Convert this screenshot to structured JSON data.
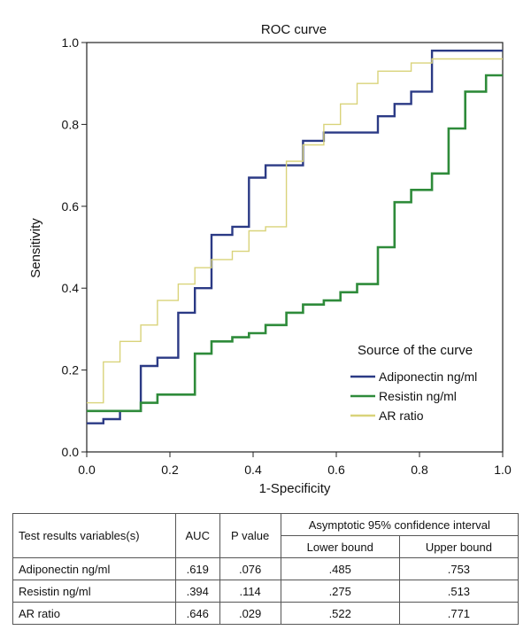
{
  "chart_data": {
    "type": "line",
    "title": "ROC curve",
    "xlabel": "1-Specificity",
    "ylabel": "Sensitivity",
    "xlim": [
      0,
      1
    ],
    "ylim": [
      0,
      1
    ],
    "xticks": [
      "0.0",
      "0.2",
      "0.4",
      "0.6",
      "0.8",
      "1.0"
    ],
    "yticks": [
      "0.0",
      "0.2",
      "0.4",
      "0.6",
      "0.8",
      "1.0"
    ],
    "legend_title": "Source of the curve",
    "legend_position": "bottom-right",
    "series": [
      {
        "name": "Adiponectin ng/ml",
        "color": "#2b3a85",
        "x": [
          0.0,
          0.04,
          0.04,
          0.08,
          0.08,
          0.13,
          0.13,
          0.17,
          0.17,
          0.22,
          0.22,
          0.26,
          0.26,
          0.3,
          0.3,
          0.35,
          0.35,
          0.39,
          0.39,
          0.43,
          0.43,
          0.52,
          0.52,
          0.57,
          0.57,
          0.7,
          0.7,
          0.74,
          0.74,
          0.78,
          0.78,
          0.83,
          0.83,
          1.0
        ],
        "y": [
          0.07,
          0.07,
          0.08,
          0.08,
          0.1,
          0.1,
          0.21,
          0.21,
          0.23,
          0.23,
          0.34,
          0.34,
          0.4,
          0.4,
          0.53,
          0.53,
          0.55,
          0.55,
          0.67,
          0.67,
          0.7,
          0.7,
          0.76,
          0.76,
          0.78,
          0.78,
          0.82,
          0.82,
          0.85,
          0.85,
          0.88,
          0.88,
          0.98,
          0.98
        ]
      },
      {
        "name": "Resistin ng/ml",
        "color": "#2e8b3a",
        "x": [
          0.0,
          0.13,
          0.13,
          0.17,
          0.17,
          0.26,
          0.26,
          0.3,
          0.3,
          0.35,
          0.35,
          0.39,
          0.39,
          0.43,
          0.43,
          0.48,
          0.48,
          0.52,
          0.52,
          0.57,
          0.57,
          0.61,
          0.61,
          0.65,
          0.65,
          0.7,
          0.7,
          0.74,
          0.74,
          0.78,
          0.78,
          0.83,
          0.83,
          0.87,
          0.87,
          0.91,
          0.91,
          0.96,
          0.96,
          1.0
        ],
        "y": [
          0.1,
          0.1,
          0.12,
          0.12,
          0.14,
          0.14,
          0.24,
          0.24,
          0.27,
          0.27,
          0.28,
          0.28,
          0.29,
          0.29,
          0.31,
          0.31,
          0.34,
          0.34,
          0.36,
          0.36,
          0.37,
          0.37,
          0.39,
          0.39,
          0.41,
          0.41,
          0.5,
          0.5,
          0.61,
          0.61,
          0.64,
          0.64,
          0.68,
          0.68,
          0.79,
          0.79,
          0.88,
          0.88,
          0.92,
          0.92
        ]
      },
      {
        "name": "AR ratio",
        "color": "#d9d37a",
        "x": [
          0.0,
          0.04,
          0.04,
          0.08,
          0.08,
          0.13,
          0.13,
          0.17,
          0.17,
          0.22,
          0.22,
          0.26,
          0.26,
          0.3,
          0.3,
          0.35,
          0.35,
          0.39,
          0.39,
          0.43,
          0.43,
          0.48,
          0.48,
          0.52,
          0.52,
          0.57,
          0.57,
          0.61,
          0.61,
          0.65,
          0.65,
          0.7,
          0.7,
          0.78,
          0.78,
          0.83,
          0.83,
          1.0
        ],
        "y": [
          0.12,
          0.12,
          0.22,
          0.22,
          0.27,
          0.27,
          0.31,
          0.31,
          0.37,
          0.37,
          0.41,
          0.41,
          0.45,
          0.45,
          0.47,
          0.47,
          0.49,
          0.49,
          0.54,
          0.54,
          0.55,
          0.55,
          0.71,
          0.71,
          0.75,
          0.75,
          0.8,
          0.8,
          0.85,
          0.85,
          0.9,
          0.9,
          0.93,
          0.93,
          0.95,
          0.95,
          0.96,
          0.96
        ]
      }
    ]
  },
  "table": {
    "header1": {
      "variables": "Test results variables(s)",
      "auc": "AUC",
      "p": "P value",
      "ci": "Asymptotic 95% confidence interval"
    },
    "header2": {
      "lower": "Lower bound",
      "upper": "Upper bound"
    },
    "rows": [
      {
        "name": "Adiponectin ng/ml",
        "auc": ".619",
        "p": ".076",
        "lower": ".485",
        "upper": ".753"
      },
      {
        "name": "Resistin ng/ml",
        "auc": ".394",
        "p": ".114",
        "lower": ".275",
        "upper": ".513"
      },
      {
        "name": "AR ratio",
        "auc": ".646",
        "p": ".029",
        "lower": ".522",
        "upper": ".771"
      }
    ]
  }
}
